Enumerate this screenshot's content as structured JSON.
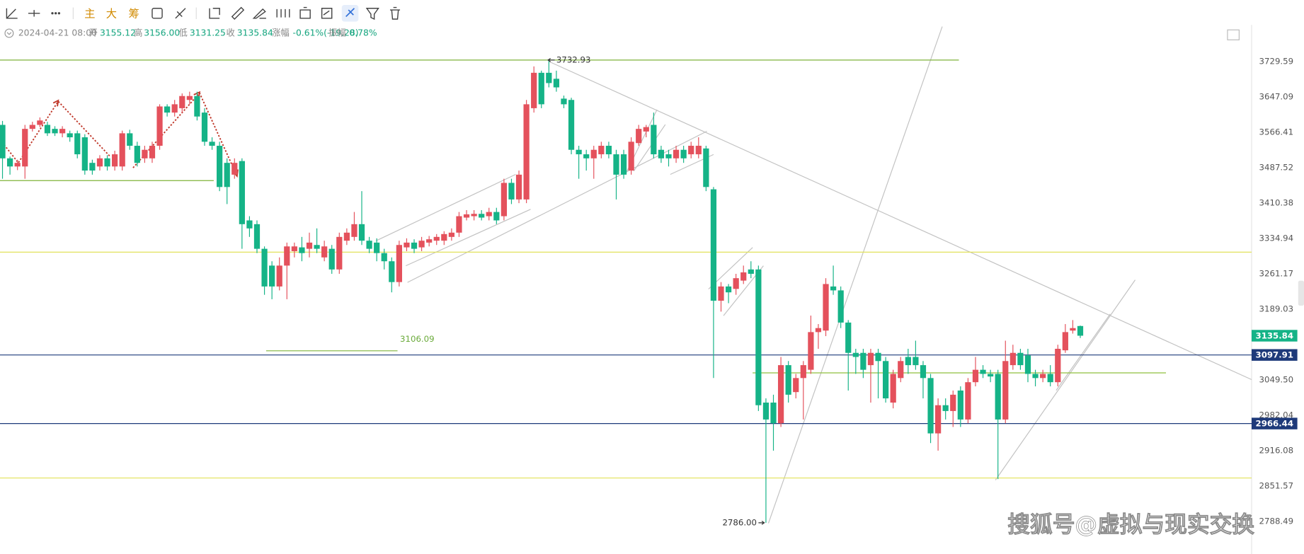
{
  "toolbar": [
    "主",
    "大",
    "筹"
  ],
  "info": {
    "date": "2024-04-21 08:00",
    "items": [
      {
        "label": "开",
        "value": "3155.12"
      },
      {
        "label": "高",
        "value": "3156.00"
      },
      {
        "label": "低",
        "value": "3131.25"
      },
      {
        "label": "收",
        "value": "3135.84"
      },
      {
        "label": "涨幅",
        "value": "-0.61%(-19.28)"
      },
      {
        "label": "振幅",
        "value": "0.78%"
      }
    ]
  },
  "watermark": "搜狐号@虚拟与现实交换",
  "chart_data": {
    "type": "candlestick",
    "log_scale": true,
    "grid": false,
    "up_color": "#e4515c",
    "down_color": "#15b387",
    "ylim": [
      2741.6,
      3816.8
    ],
    "yticks": [
      3729.59,
      3647.09,
      3566.41,
      3487.52,
      3410.38,
      3334.94,
      3261.17,
      3189.03,
      {
        "value": 3049.5,
        "label": "3049.50"
      },
      2982.04,
      2916.08,
      2851.57,
      2788.49
    ],
    "open": [
      3583,
      3508,
      3490,
      3490,
      3574,
      3583,
      3583,
      3574,
      3564,
      3564,
      3564,
      3555,
      3498,
      3490,
      3508,
      3490,
      3490,
      3564,
      3536,
      3508,
      3508,
      3536,
      3625,
      3611,
      3621,
      3640,
      3649,
      3611,
      3545,
      3536,
      3498,
      3472,
      3502,
      3373,
      3365,
      3313,
      3278,
      3235,
      3278,
      3308,
      3316,
      3313,
      3321,
      3295,
      3313,
      3270,
      3330,
      3338,
      3365,
      3330,
      3326,
      3304,
      3287,
      3244,
      3316,
      3326,
      3316,
      3326,
      3330,
      3330,
      3338,
      3347,
      3379,
      3382,
      3387,
      3382,
      3391,
      3382,
      3454,
      3418,
      3418,
      3621,
      3703,
      3703,
      3689,
      3643,
      3640,
      3527,
      3517,
      3508,
      3517,
      3536,
      3517,
      3517,
      3481,
      3542,
      3568,
      3583,
      3527,
      3517,
      3508,
      3527,
      3517,
      3517,
      3530,
      3440,
      3206,
      3235,
      3230,
      3247,
      3270,
      3270,
      3006,
      3006,
      2967,
      3078,
      3026,
      3053,
      3069,
      3143,
      3146,
      3235,
      3227,
      3162,
      3102,
      3102,
      3078,
      3102,
      3086,
      3006,
      3053,
      3094,
      3094,
      3078,
      3053,
      2948,
      3001,
      2990,
      3029,
      2974,
      3045,
      3069,
      3061,
      3061,
      2974,
      3078,
      3102,
      3097,
      3061,
      3053,
      3061,
      3045,
      3107,
      3146,
      3155.12
    ],
    "high": [
      3592,
      3512,
      3505,
      3583,
      3590,
      3600,
      3590,
      3580,
      3580,
      3570,
      3570,
      3562,
      3505,
      3515,
      3515,
      3525,
      3570,
      3572,
      3545,
      3536,
      3545,
      3630,
      3630,
      3640,
      3655,
      3659,
      3659,
      3621,
      3555,
      3545,
      3508,
      3508,
      3508,
      3382,
      3373,
      3318,
      3287,
      3295,
      3326,
      3326,
      3338,
      3347,
      3356,
      3330,
      3321,
      3347,
      3356,
      3391,
      3436,
      3338,
      3335,
      3313,
      3295,
      3330,
      3335,
      3333,
      3338,
      3340,
      3344,
      3350,
      3356,
      3391,
      3395,
      3395,
      3395,
      3400,
      3400,
      3463,
      3463,
      3481,
      3640,
      3718,
      3708,
      3732.93,
      3708,
      3650,
      3645,
      3536,
      3527,
      3536,
      3545,
      3545,
      3527,
      3527,
      3555,
      3583,
      3583,
      3611,
      3536,
      3527,
      3536,
      3536,
      3545,
      3555,
      3536,
      3445,
      3244,
      3240,
      3261,
      3278,
      3287,
      3278,
      3014,
      3021,
      3094,
      3086,
      3061,
      3086,
      3176,
      3159,
      3252,
      3278,
      3235,
      3167,
      3110,
      3110,
      3110,
      3110,
      3094,
      3069,
      3094,
      3110,
      3126,
      3086,
      3061,
      3014,
      3014,
      3029,
      3037,
      3053,
      3094,
      3078,
      3069,
      3069,
      3126,
      3118,
      3110,
      3110,
      3069,
      3069,
      3078,
      3118,
      3159,
      3167,
      3156.0
    ],
    "low": [
      3463,
      3472,
      3482,
      3463,
      3568,
      3578,
      3558,
      3558,
      3555,
      3545,
      3508,
      3472,
      3472,
      3481,
      3481,
      3481,
      3481,
      3527,
      3490,
      3498,
      3498,
      3527,
      3602,
      3602,
      3611,
      3630,
      3593,
      3536,
      3527,
      3436,
      3408,
      3463,
      3313,
      3338,
      3304,
      3218,
      3209,
      3227,
      3209,
      3295,
      3287,
      3295,
      3304,
      3287,
      3261,
      3261,
      3321,
      3330,
      3321,
      3304,
      3287,
      3270,
      3223,
      3235,
      3308,
      3304,
      3308,
      3318,
      3321,
      3321,
      3330,
      3338,
      3373,
      3373,
      3373,
      3373,
      3365,
      3373,
      3408,
      3410,
      3410,
      3611,
      3621,
      3669,
      3659,
      3621,
      3517,
      3463,
      3481,
      3463,
      3508,
      3508,
      3418,
      3463,
      3472,
      3536,
      3555,
      3508,
      3498,
      3490,
      3498,
      3498,
      3508,
      3508,
      3436,
      3053,
      3184,
      3201,
      3218,
      3240,
      3252,
      2990,
      2786,
      2916,
      2960,
      3006,
      3014,
      2974,
      3061,
      3110,
      3135,
      3218,
      3151,
      3029,
      3061,
      3053,
      3006,
      3014,
      3006,
      2995,
      3045,
      3061,
      3069,
      3014,
      2930,
      2916,
      2974,
      2960,
      2960,
      2967,
      3037,
      3053,
      3045,
      2864,
      2967,
      3069,
      3069,
      3045,
      3037,
      3045,
      3037,
      3037,
      3102,
      3140,
      3131.25
    ],
    "close": [
      3508,
      3490,
      3498,
      3574,
      3583,
      3593,
      3564,
      3564,
      3574,
      3555,
      3517,
      3481,
      3481,
      3508,
      3490,
      3517,
      3564,
      3536,
      3498,
      3527,
      3536,
      3625,
      3611,
      3630,
      3649,
      3649,
      3602,
      3545,
      3536,
      3445,
      3445,
      3498,
      3365,
      3356,
      3313,
      3235,
      3235,
      3278,
      3318,
      3318,
      3304,
      3326,
      3313,
      3318,
      3270,
      3338,
      3347,
      3365,
      3330,
      3313,
      3304,
      3287,
      3244,
      3321,
      3326,
      3313,
      3330,
      3333,
      3338,
      3344,
      3347,
      3382,
      3386,
      3387,
      3379,
      3391,
      3373,
      3454,
      3418,
      3472,
      3630,
      3703,
      3630,
      3679,
      3669,
      3630,
      3527,
      3517,
      3508,
      3527,
      3536,
      3517,
      3472,
      3472,
      3545,
      3574,
      3578,
      3517,
      3508,
      3508,
      3527,
      3508,
      3536,
      3536,
      3445,
      3206,
      3235,
      3223,
      3252,
      3264,
      3261,
      3001,
      2974,
      2967,
      3078,
      3021,
      3053,
      3078,
      3143,
      3151,
      3240,
      3227,
      3162,
      3102,
      3094,
      3069,
      3102,
      3086,
      3014,
      3061,
      3086,
      3078,
      3078,
      3053,
      2948,
      3001,
      2990,
      3021,
      2974,
      3045,
      3069,
      3061,
      3056,
      2974,
      3086,
      3102,
      3078,
      3061,
      3053,
      3061,
      3045,
      3110,
      3143,
      3151,
      3135.84
    ],
    "horizontal_lines": [
      {
        "value": 3732.93,
        "color": "#7fb33a"
      },
      {
        "value": 3459,
        "color": "#7fb33a"
      },
      {
        "value": 3306,
        "color": "#e2e25a"
      },
      {
        "value": 3106.09,
        "color": "#7fb33a"
      },
      {
        "value": 3063,
        "color": "#8fbf3f"
      },
      {
        "value": 2866,
        "color": "#e2e25a"
      }
    ],
    "annotations": [
      3732.93,
      3106.09,
      {
        "value": 2786,
        "label": "2786.00"
      }
    ],
    "price_lines": [
      {
        "value": 3097.91,
        "color": "#1e3a7a"
      },
      {
        "value": 2966.44,
        "color": "#1e3a7a"
      }
    ],
    "last_price": 3135.84
  }
}
